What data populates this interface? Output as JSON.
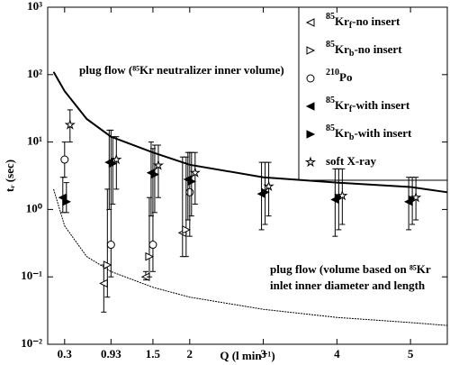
{
  "chart_data": {
    "type": "scatter",
    "x_label": "Q (l min⁻¹)",
    "y_label": "tᵣ (sec)",
    "log_y": true,
    "xlim": [
      0.07,
      5.5
    ],
    "ylim": [
      0.01,
      1000
    ],
    "xticks": [
      0.3,
      0.93,
      1.5,
      2,
      3,
      4,
      5
    ],
    "yticks": [
      {
        "value": 0.01,
        "label": "10⁻²"
      },
      {
        "value": 0.1,
        "label": "10⁻¹"
      },
      {
        "value": 1,
        "label": "10⁰"
      },
      {
        "value": 10,
        "label": "10¹"
      },
      {
        "value": 100,
        "label": "10²"
      },
      {
        "value": 1000,
        "label": "10³"
      }
    ],
    "legend": "upper right",
    "series": [
      {
        "name": {
          "sup": "85",
          "base": "Kr",
          "sub": "f",
          "rest": "-no insert"
        },
        "marker": "left-open",
        "color": "#000000",
        "x": [
          0.93,
          1.5,
          2
        ],
        "values": [
          0.08,
          0.1,
          0.45
        ],
        "ylow": [
          0.03,
          0.09,
          0.2
        ],
        "yhigh": [
          0.15,
          0.12,
          6
        ]
      },
      {
        "name": {
          "sup": "85",
          "base": "Kr",
          "sub": "b",
          "rest": "-no insert"
        },
        "marker": "right-open",
        "color": "#000000",
        "x": [
          0.93,
          1.5,
          2
        ],
        "values": [
          0.15,
          0.2,
          0.5
        ],
        "ylow": [
          0.05,
          0.1,
          0.2
        ],
        "yhigh": [
          2,
          1.5,
          6
        ]
      },
      {
        "name": {
          "sup": "210",
          "base": "Po",
          "sub": "",
          "rest": ""
        },
        "marker": "circle-open",
        "color": "#000000",
        "x": [
          0.3,
          0.93,
          1.5,
          2
        ],
        "values": [
          5.5,
          0.3,
          0.3,
          1.8
        ],
        "ylow": [
          3,
          0.1,
          0.12,
          0.4
        ],
        "yhigh": [
          10,
          15,
          8,
          7
        ]
      },
      {
        "name": {
          "sup": "85",
          "base": "Kr",
          "sub": "f",
          "rest": "-with insert"
        },
        "marker": "left-filled",
        "color": "#000000",
        "x": [
          0.3,
          0.93,
          1.5,
          2,
          3,
          4,
          5
        ],
        "values": [
          1.5,
          5,
          3.5,
          2.8,
          1.7,
          1.4,
          1.3
        ],
        "ylow": [
          0.9,
          1,
          0.8,
          0.7,
          0.5,
          0.4,
          0.5
        ],
        "yhigh": [
          3,
          15,
          10,
          7,
          5,
          4,
          3
        ]
      },
      {
        "name": {
          "sup": "85",
          "base": "Kr",
          "sub": "b",
          "rest": "-with insert"
        },
        "marker": "right-filled",
        "color": "#000000",
        "x": [
          0.3,
          0.93,
          1.5,
          2,
          3,
          4,
          5
        ],
        "values": [
          1.3,
          4.8,
          3.3,
          2.6,
          1.8,
          1.5,
          1.4
        ],
        "ylow": [
          0.9,
          1.2,
          0.9,
          0.8,
          0.6,
          0.5,
          0.6
        ],
        "yhigh": [
          2.5,
          12,
          9,
          7,
          5,
          4,
          3
        ]
      },
      {
        "name": {
          "sup": "",
          "base": "soft X-ray",
          "sub": "",
          "rest": ""
        },
        "marker": "star",
        "color": "#000000",
        "x": [
          0.3,
          0.93,
          1.5,
          2,
          3,
          4,
          5
        ],
        "values": [
          18,
          5.5,
          4.5,
          3.5,
          2.2,
          1.6,
          1.5
        ],
        "ylow": [
          10,
          2,
          1.5,
          1.2,
          0.8,
          0.6,
          0.7
        ],
        "yhigh": [
          30,
          12,
          9,
          7,
          5,
          4,
          3
        ]
      }
    ],
    "curves": [
      {
        "x": [
          0.15,
          0.3,
          0.6,
          0.93,
          1.5,
          2,
          3,
          4,
          5,
          5.5
        ],
        "values": [
          110,
          57,
          22,
          12,
          7,
          4.6,
          3,
          2.5,
          2.15,
          1.8
        ],
        "dash": false
      },
      {
        "x": [
          0.15,
          0.3,
          0.6,
          0.93,
          1.5,
          2,
          3,
          4,
          5,
          5.5
        ],
        "values": [
          2,
          0.57,
          0.2,
          0.12,
          0.07,
          0.05,
          0.033,
          0.025,
          0.021,
          0.019
        ],
        "dash": true
      }
    ],
    "annotations": [
      {
        "text": "plug flow (⁸⁵Kr neutralizer inner volume)"
      },
      {
        "text": "plug flow (volume based on ⁸⁵Kr"
      },
      {
        "text": "inlet inner diameter and length"
      }
    ]
  }
}
